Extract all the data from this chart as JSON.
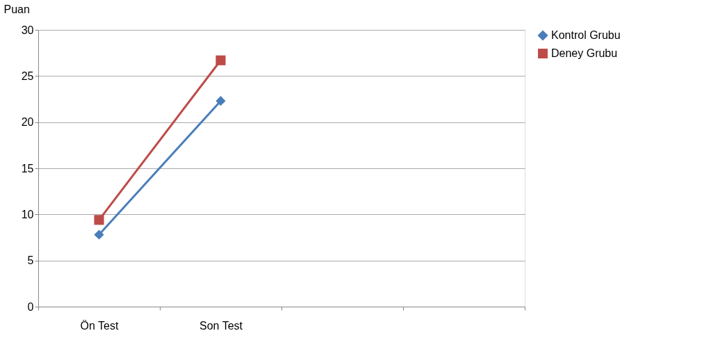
{
  "chart_data": {
    "type": "line",
    "ylabel": "Puan",
    "categories": [
      "Ön Test",
      "Son Test",
      null,
      null
    ],
    "series": [
      {
        "name": "Kontrol Grubu",
        "color": "#4a7ebb",
        "marker": "diamond",
        "values": [
          7.8,
          22.3,
          null,
          null
        ]
      },
      {
        "name": "Deney Grubu",
        "color": "#be4b48",
        "marker": "square",
        "values": [
          9.4,
          26.7,
          null,
          null
        ]
      }
    ],
    "ylim": [
      0,
      30
    ],
    "yticks": [
      0,
      5,
      10,
      15,
      20,
      25,
      30
    ],
    "grid": "y",
    "legend": "right"
  }
}
